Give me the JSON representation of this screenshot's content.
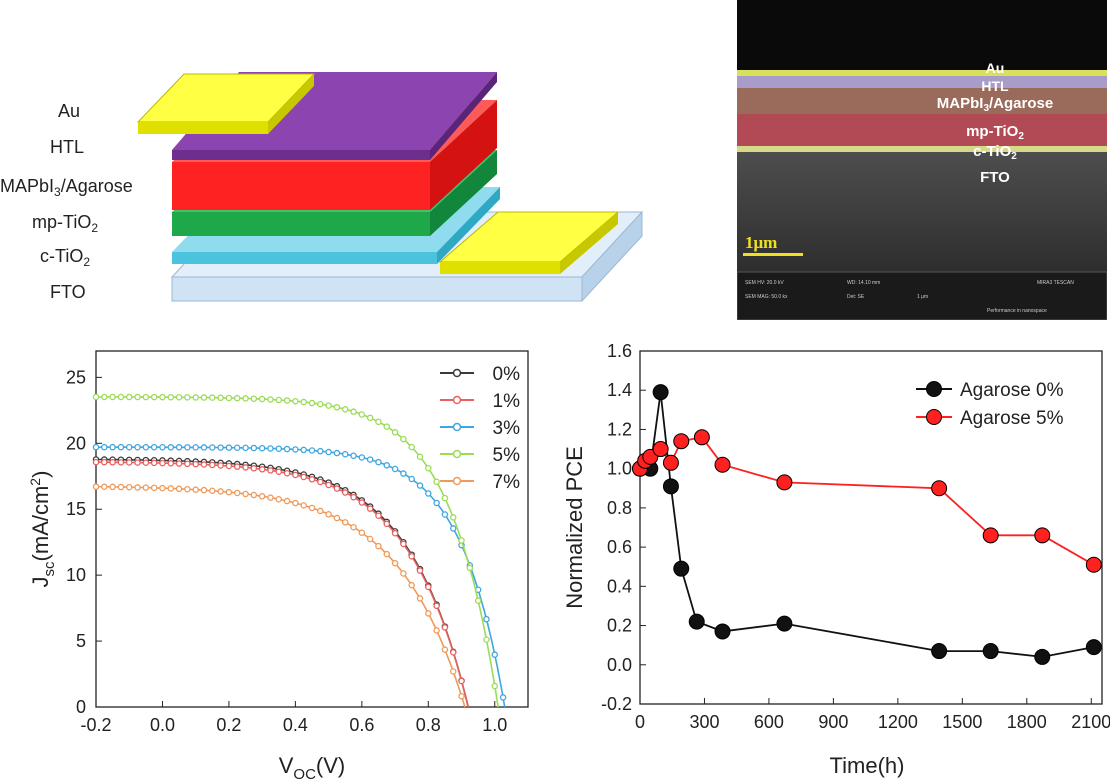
{
  "device": {
    "layers": [
      "Au",
      "HTL",
      "MAPbI3/Agarose",
      "mp-TiO2",
      "c-TiO2",
      "FTO"
    ],
    "colors": {
      "au": "#ffff44",
      "htl": "#8b44b0",
      "perov": "#ff2222",
      "mp": "#1fa84a",
      "ct": "#4cc3de",
      "fto": "#cfe3f5"
    }
  },
  "sem": {
    "labels": [
      "Au",
      "HTL",
      "MAPbI3/Agarose",
      "mp-TiO2",
      "c-TiO2",
      "FTO"
    ],
    "scale_bar": "1μm",
    "info": [
      "SEM HV: 20.0 kV",
      "WD: 14.10 mm",
      "MIRA3 TESCAN",
      "SEM MAG: 50.0 kx",
      "Det: SE",
      "1 μm",
      "Performance in nanospace"
    ]
  },
  "chart_data": [
    {
      "type": "line",
      "title": "",
      "xlabel": "V_OC(V)",
      "ylabel": "J_sc(mA/cm^2)",
      "xlim": [
        -0.2,
        1.1
      ],
      "ylim": [
        0,
        27
      ],
      "xticks": [
        -0.2,
        0.0,
        0.2,
        0.4,
        0.6,
        0.8,
        1.0
      ],
      "xtick_labels": [
        "-0.2",
        "0.0",
        "0.2",
        "0.4",
        "0.6",
        "0.8",
        "1.0"
      ],
      "yticks": [
        0,
        5,
        10,
        15,
        20,
        25
      ],
      "ytick_labels": [
        "0",
        "5",
        "10",
        "15",
        "20",
        "25"
      ],
      "legend_position": "top-right",
      "series": [
        {
          "name": "0%",
          "color": "#3a3a3a",
          "jsc": 18.7,
          "voc": 0.92,
          "n": 5.6
        },
        {
          "name": "1%",
          "color": "#e8605f",
          "jsc": 18.5,
          "voc": 0.92,
          "n": 5.6
        },
        {
          "name": "3%",
          "color": "#3ea6e0",
          "jsc": 19.7,
          "voc": 1.03,
          "n": 7.5
        },
        {
          "name": "5%",
          "color": "#9bdc55",
          "jsc": 23.5,
          "voc": 1.01,
          "n": 7.0
        },
        {
          "name": "7%",
          "color": "#ef9a5a",
          "jsc": 16.6,
          "voc": 0.91,
          "n": 5.0
        }
      ]
    },
    {
      "type": "line",
      "title": "",
      "xlabel": "Time(h)",
      "ylabel": "Normalized PCE",
      "xlim": [
        0,
        2150
      ],
      "ylim": [
        -0.2,
        1.6
      ],
      "xticks": [
        0,
        300,
        600,
        900,
        1200,
        1500,
        1800,
        2100
      ],
      "xtick_labels": [
        "0",
        "300",
        "600",
        "900",
        "1200",
        "1500",
        "1800",
        "2100"
      ],
      "yticks": [
        -0.2,
        0.0,
        0.2,
        0.4,
        0.6,
        0.8,
        1.0,
        1.2,
        1.4,
        1.6
      ],
      "ytick_labels": [
        "-0.2",
        "0.0",
        "0.2",
        "0.4",
        "0.6",
        "0.8",
        "1.0",
        "1.2",
        "1.4",
        "1.6"
      ],
      "legend_position": "top-right",
      "series": [
        {
          "name": "Agarose 0%",
          "color": "#111111",
          "x": [
            0,
            48,
            96,
            144,
            192,
            264,
            384,
            672,
            1392,
            1632,
            1872,
            2112
          ],
          "y": [
            1.0,
            1.0,
            1.39,
            0.91,
            0.49,
            0.22,
            0.17,
            0.21,
            0.07,
            0.07,
            0.04,
            0.09
          ]
        },
        {
          "name": "Agarose 5%",
          "color": "#ff2020",
          "x": [
            0,
            24,
            48,
            96,
            144,
            192,
            288,
            384,
            672,
            1392,
            1632,
            1872,
            2112
          ],
          "y": [
            1.0,
            1.04,
            1.06,
            1.1,
            1.03,
            1.14,
            1.16,
            1.02,
            0.93,
            0.9,
            0.66,
            0.66,
            0.51
          ]
        }
      ]
    }
  ]
}
